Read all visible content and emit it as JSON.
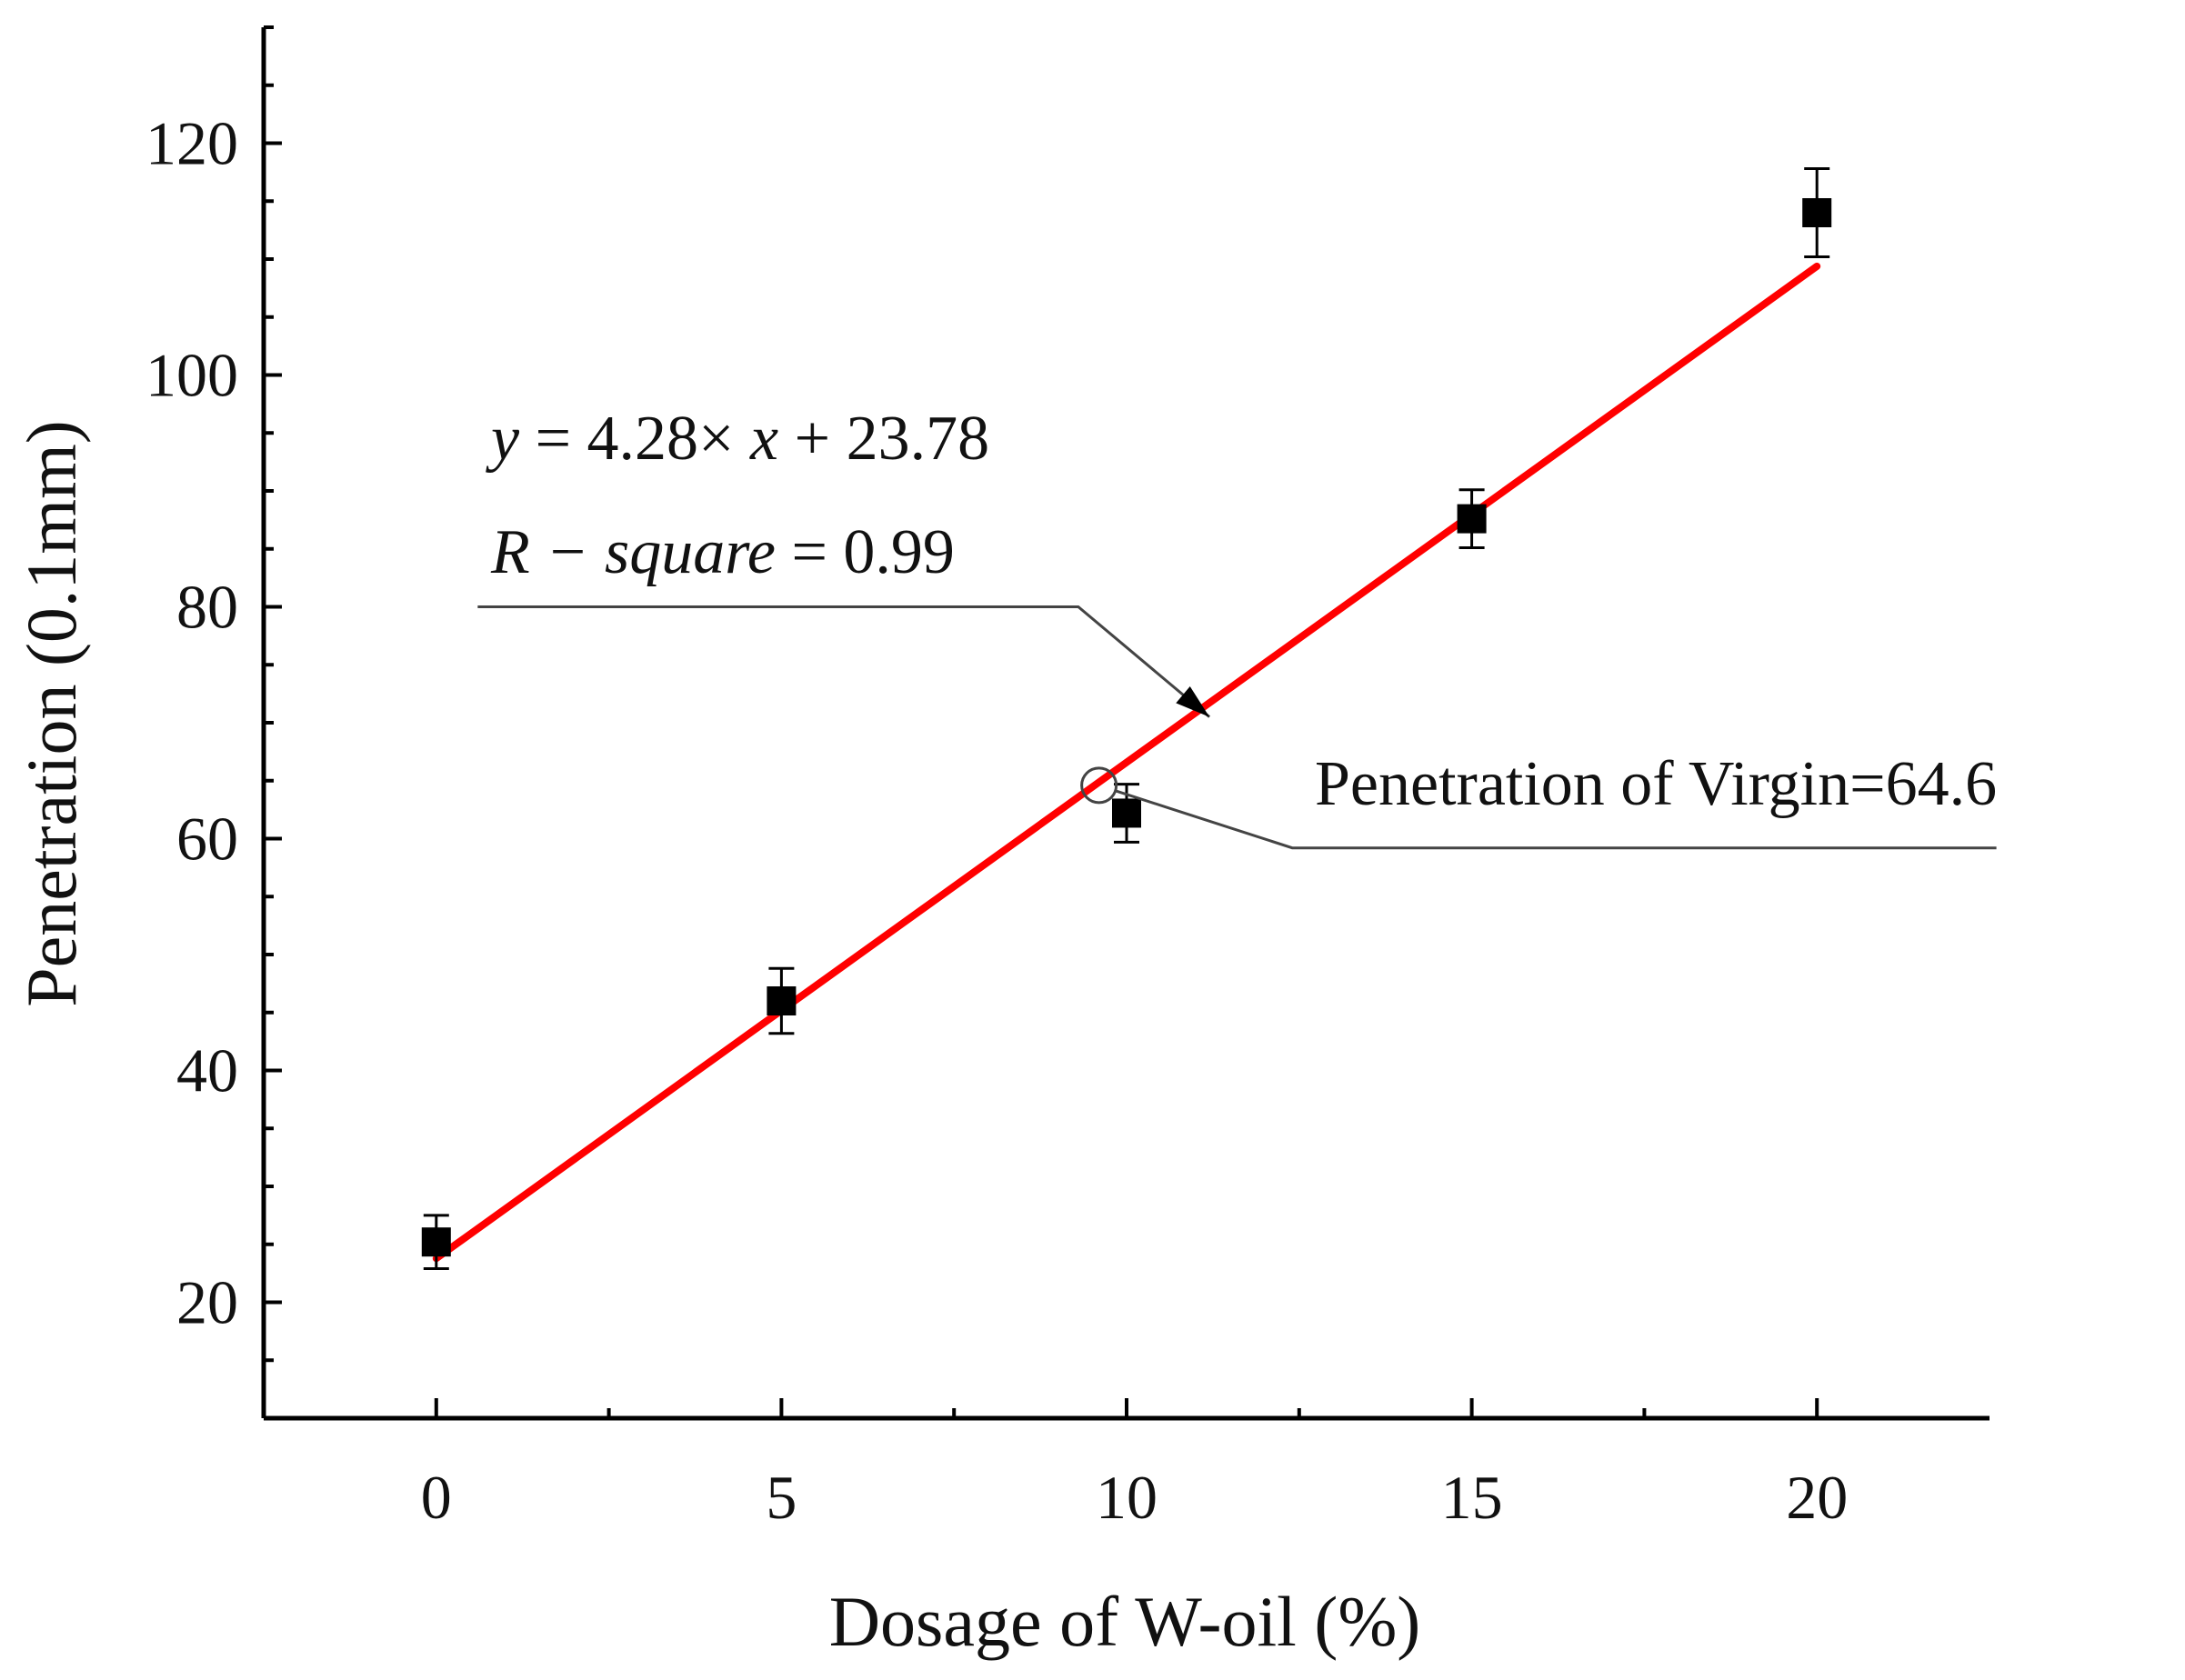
{
  "chart_data": {
    "type": "scatter",
    "xlabel": "Dosage of W-oil (%)",
    "ylabel": "Penetration (0.1mm)",
    "xlim": [
      -2.5,
      22.5
    ],
    "ylim": [
      10,
      130
    ],
    "x_ticks": [
      0,
      5,
      10,
      15,
      20
    ],
    "y_ticks": [
      20,
      40,
      60,
      80,
      100,
      120
    ],
    "grid": false,
    "legend": "none",
    "colors": {
      "points": "#000000",
      "fit": "#ff0000",
      "annotation": "#444444"
    },
    "series": [
      {
        "x": [
          0,
          5,
          10,
          15,
          20
        ],
        "y": [
          25.2,
          46.0,
          62.2,
          87.6,
          114.0
        ],
        "y_err": [
          2.3,
          2.8,
          2.5,
          2.5,
          3.8
        ]
      }
    ],
    "fit": {
      "slope": 4.28,
      "intercept": 23.78,
      "x_range": [
        0,
        20
      ],
      "equation_lhs": "y",
      "equation_rhs": " = 4.28× ",
      "equation_x": "x",
      "equation_tail": " + 23.78",
      "r_label": "R − square",
      "r_value": " = 0.99"
    },
    "virgin_point": {
      "x": 9.6,
      "y": 64.6,
      "label": "Penetration of Virgin=64.6"
    }
  }
}
